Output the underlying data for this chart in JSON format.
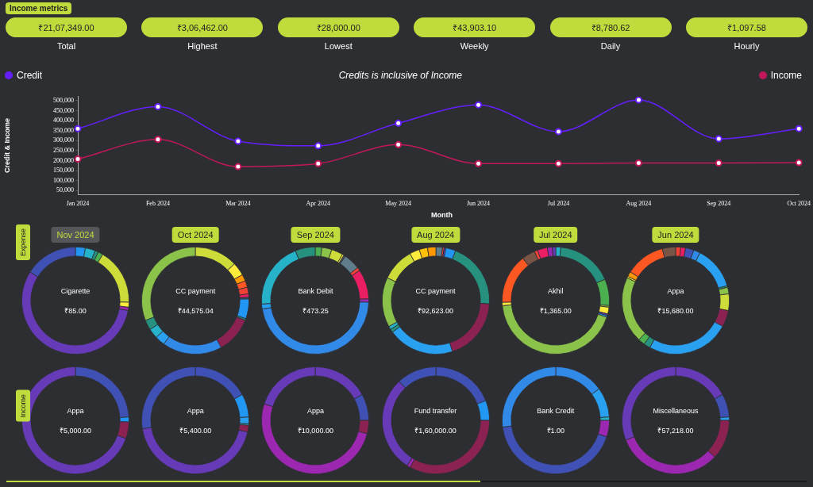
{
  "chart_data": [
    {
      "type": "other",
      "title": "Income metrics",
      "categories": [
        "Total",
        "Highest",
        "Lowest",
        "Weekly",
        "Daily",
        "Hourly"
      ],
      "value_labels": [
        "₹21,07,349.00",
        "₹3,06,462.00",
        "₹28,000.00",
        "₹43,903.10",
        "₹8,780.62",
        "₹1,097.58"
      ],
      "color": "#c0dc3c"
    },
    {
      "type": "line",
      "subtitle": "Credits is inclusive of Income",
      "xlabel": "Month",
      "ylabel": "Credit & Income",
      "categories": [
        "Jan 2024",
        "Feb 2024",
        "Mar 2024",
        "Apr 2024",
        "May 2024",
        "Jun 2024",
        "Jul 2024",
        "Aug 2024",
        "Sep 2024",
        "Oct 2024"
      ],
      "series": [
        {
          "name": "Credit",
          "color": "#651fff",
          "values": [
            360000,
            470000,
            297000,
            274000,
            387000,
            479000,
            345000,
            503000,
            309000,
            360000
          ]
        },
        {
          "name": "Income",
          "color": "#c2185b",
          "values": [
            208000,
            306000,
            170000,
            185000,
            280000,
            185000,
            185000,
            188000,
            188000,
            190000
          ]
        }
      ],
      "ylim": [
        30000,
        520000
      ],
      "yticks": [
        {
          "value": 50000,
          "label": "50,000"
        },
        {
          "value": 100000,
          "label": "100,000"
        },
        {
          "value": 150000,
          "label": "150,000"
        },
        {
          "value": 200000,
          "label": "200,000"
        },
        {
          "value": 250000,
          "label": "250,000"
        },
        {
          "value": 300000,
          "label": "300,000"
        },
        {
          "value": 350000,
          "label": "350,000"
        },
        {
          "value": 400000,
          "label": "400,000"
        },
        {
          "value": 450000,
          "label": "450,000"
        },
        {
          "value": 500000,
          "label": "500,000"
        }
      ],
      "grid": false,
      "legend": "top",
      "marker": "circle",
      "line_style": "solid"
    },
    {
      "type": "donut",
      "title": "Nov 2024",
      "ylabel": "Expense",
      "annotations": [
        "Cigarette",
        "₹85.00"
      ],
      "categories": [
        null,
        null,
        null,
        null,
        null,
        null,
        null,
        null,
        null
      ],
      "values": [
        3,
        3,
        1,
        1.5,
        17,
        1.5,
        1,
        56,
        16
      ],
      "colors": [
        "#2196f3",
        "#26b3c9",
        "#26917f",
        "#4caf50",
        "#cddc39",
        "#ffeb3b",
        "#9c27b0",
        "#673ab7",
        "#3f51b5"
      ]
    },
    {
      "type": "donut",
      "title": "Oct 2024",
      "annotations": [
        "CC payment",
        "₹44,575.04"
      ],
      "categories": [
        null,
        null,
        null,
        null,
        null,
        null,
        null,
        null,
        null,
        null,
        null,
        null,
        null,
        null,
        null
      ],
      "values": [
        13,
        4,
        2,
        2,
        2,
        1,
        0.5,
        6,
        0.5,
        11,
        18,
        3,
        3,
        3,
        31
      ],
      "colors": [
        "#cddc39",
        "#ffeb3b",
        "#ff9800",
        "#ff5722",
        "#f44336",
        "#e91e63",
        "#455a64",
        "#2196f3",
        "#26917f",
        "#8b2252",
        "#3189e8",
        "#29a0f0",
        "#26b3c9",
        "#26917f",
        "#8bc34a"
      ]
    },
    {
      "type": "donut",
      "title": "Sep 2024",
      "annotations": [
        "Bank Debit",
        "₹473.25"
      ],
      "categories": [
        null,
        null,
        null,
        null,
        null,
        null,
        null,
        null,
        null,
        null,
        null,
        null,
        null
      ],
      "values": [
        2,
        3,
        3.5,
        0.5,
        0.5,
        5,
        1,
        9,
        1,
        47,
        1.5,
        20,
        6
      ],
      "colors": [
        "#4caf50",
        "#8bc34a",
        "#cddc39",
        "#ffeb3b",
        "#455a64",
        "#607d8b",
        "#f44336",
        "#e91e63",
        "#9c27b0",
        "#3189e8",
        "#29a0f0",
        "#26b3c9",
        "#26917f"
      ]
    },
    {
      "type": "donut",
      "title": "Aug 2024",
      "annotations": [
        "CC payment",
        "₹92,623.00"
      ],
      "categories": [
        null,
        null,
        null,
        null,
        null,
        null,
        null,
        null,
        null,
        null,
        null,
        null,
        null,
        null
      ],
      "values": [
        2,
        0.5,
        0.5,
        3,
        20,
        19,
        20,
        1,
        1,
        15,
        10,
        3,
        2.5,
        2.5
      ],
      "colors": [
        "#607d8b",
        "#f44336",
        "#673ab7",
        "#2196f3",
        "#26917f",
        "#8b2252",
        "#29a0f0",
        "#26917f",
        "#26b3c9",
        "#8bc34a",
        "#cddc39",
        "#ffeb3b",
        "#ffc107",
        "#ff9800"
      ]
    },
    {
      "type": "donut",
      "title": "Jul 2024",
      "annotations": [
        "Akhil",
        "₹1,365.00"
      ],
      "categories": [
        null,
        null,
        null,
        null,
        null,
        null,
        null,
        null,
        null,
        null,
        null,
        null,
        null,
        null,
        null
      ],
      "values": [
        1.5,
        17,
        8,
        0.5,
        2,
        0.5,
        0.5,
        43.5,
        1,
        15,
        4,
        1,
        3,
        1.5,
        1
      ],
      "colors": [
        "#26b3c9",
        "#26917f",
        "#4caf50",
        "#8bc34a",
        "#ffeb3b",
        "#673ab7",
        "#2196f3",
        "#8bc34a",
        "#ffeb3b",
        "#ff5722",
        "#795548",
        "#f44336",
        "#e91e63",
        "#9c27b0",
        "#673ab7"
      ]
    },
    {
      "type": "donut",
      "title": "Jun 2024",
      "annotations": [
        "Appa",
        "₹15,680.00"
      ],
      "categories": [
        null,
        null,
        null,
        null,
        null,
        null,
        null,
        null,
        null,
        null,
        null,
        null,
        null,
        null,
        null,
        null,
        null
      ],
      "values": [
        1.5,
        1.5,
        2.5,
        2,
        13,
        0.5,
        2,
        5,
        5,
        25,
        2,
        2,
        20,
        0.5,
        1.5,
        12,
        4
      ],
      "colors": [
        "#f44336",
        "#e91e63",
        "#3f51b5",
        "#3189e8",
        "#29a0f0",
        "#26917f",
        "#8bc34a",
        "#cddc39",
        "#8b2252",
        "#29a0f0",
        "#26917f",
        "#4caf50",
        "#8bc34a",
        "#ffeb3b",
        "#ff9800",
        "#ff5722",
        "#795548"
      ]
    },
    {
      "type": "donut",
      "ylabel": "Income",
      "annotations": [
        "Appa",
        "₹5,000.00"
      ],
      "categories": [
        null,
        null,
        null,
        null
      ],
      "values": [
        24,
        1.5,
        5,
        69.5
      ],
      "colors": [
        "#3f51b5",
        "#2196f3",
        "#8b2252",
        "#673ab7"
      ]
    },
    {
      "type": "donut",
      "annotations": [
        "Appa",
        "₹5,400.00"
      ],
      "categories": [
        null,
        null,
        null,
        null,
        null,
        null,
        null
      ],
      "values": [
        17,
        7,
        2,
        0.5,
        2,
        44,
        27.5
      ],
      "colors": [
        "#3f51b5",
        "#2196f3",
        "#29a0f0",
        "#26b3c9",
        "#8b2252",
        "#673ab7",
        "#3f51b5"
      ]
    },
    {
      "type": "donut",
      "annotations": [
        "Appa",
        "₹10,000.00"
      ],
      "categories": [
        null,
        null,
        null,
        null,
        null
      ],
      "values": [
        17,
        8,
        4,
        51,
        20
      ],
      "colors": [
        "#673ab7",
        "#3f51b5",
        "#8b2252",
        "#9c27b0",
        "#673ab7"
      ]
    },
    {
      "type": "donut",
      "annotations": [
        "Fund transfer",
        "₹1,60,000.00"
      ],
      "categories": [
        null,
        null,
        null,
        null,
        null,
        null
      ],
      "values": [
        19,
        6,
        33,
        1,
        29,
        12
      ],
      "colors": [
        "#3f51b5",
        "#2196f3",
        "#8b2252",
        "#9c27b0",
        "#673ab7",
        "#3f51b5"
      ]
    },
    {
      "type": "donut",
      "annotations": [
        "Bank Credit",
        "₹1.00"
      ],
      "categories": [
        null,
        null,
        null,
        null,
        null,
        null
      ],
      "values": [
        15,
        9,
        1,
        5,
        43,
        27
      ],
      "colors": [
        "#3189e8",
        "#29a0f0",
        "#26b3c9",
        "#9c27b0",
        "#3f51b5",
        "#3189e8"
      ]
    },
    {
      "type": "donut",
      "annotations": [
        "Miscellaneous",
        "₹57,218.00"
      ],
      "categories": [
        null,
        null,
        null,
        null,
        null,
        null
      ],
      "values": [
        17,
        7,
        1,
        12,
        32,
        31
      ],
      "colors": [
        "#673ab7",
        "#3f51b5",
        "#29a0f0",
        "#8b2252",
        "#9c27b0",
        "#673ab7"
      ]
    }
  ]
}
